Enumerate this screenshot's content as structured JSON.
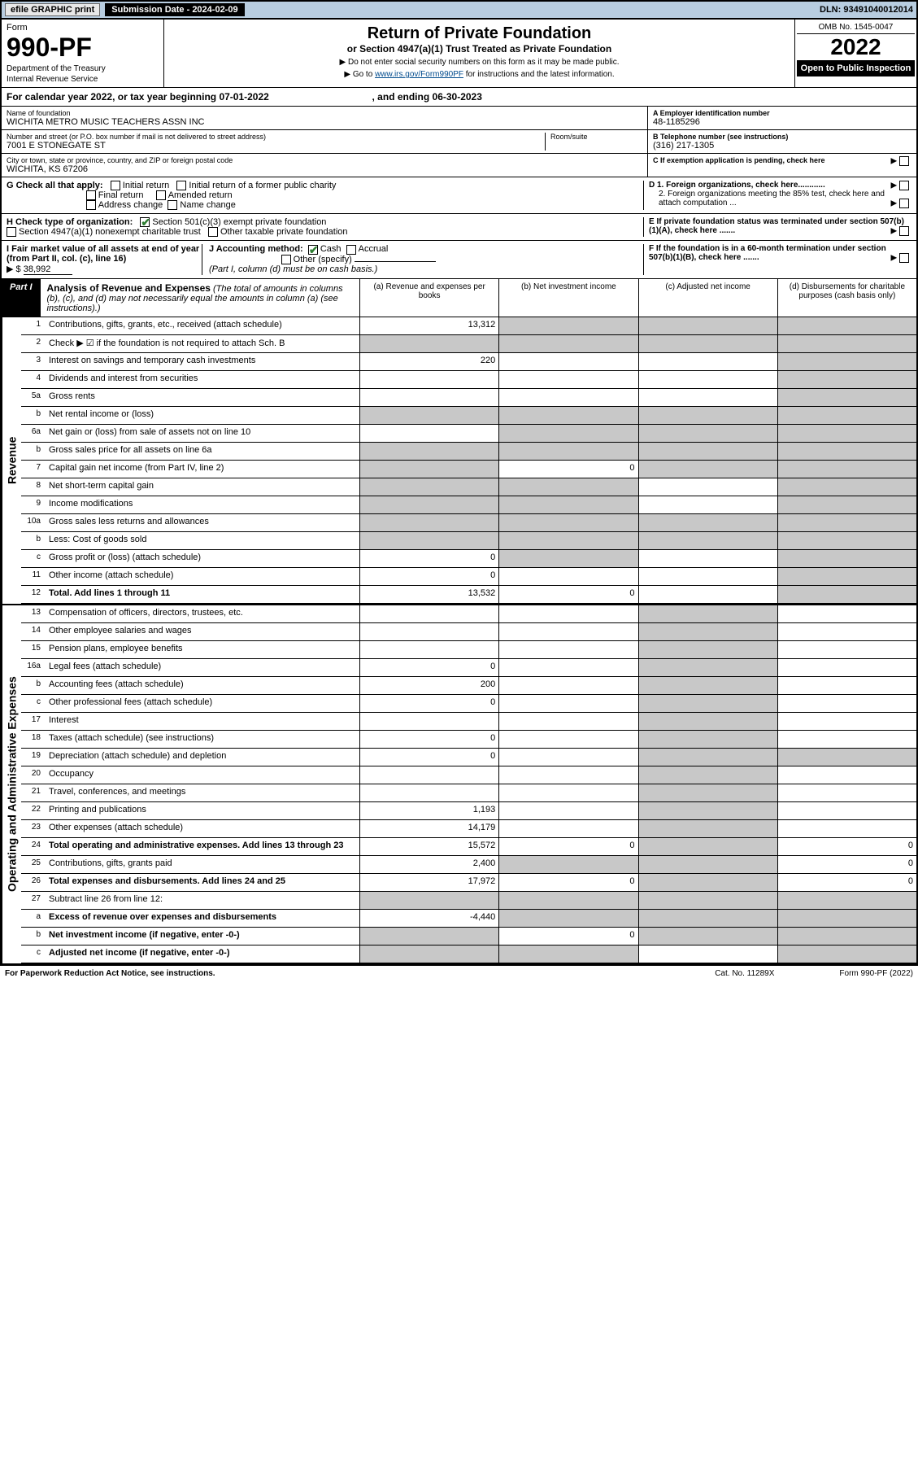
{
  "topbar": {
    "efile": "efile GRAPHIC print",
    "subdate_label": "Submission Date - 2024-02-09",
    "dln": "DLN: 93491040012014"
  },
  "header": {
    "form_label": "Form",
    "form_no": "990-PF",
    "dept": "Department of the Treasury",
    "irs": "Internal Revenue Service",
    "title": "Return of Private Foundation",
    "subtitle": "or Section 4947(a)(1) Trust Treated as Private Foundation",
    "note1": "▶ Do not enter social security numbers on this form as it may be made public.",
    "note2_a": "▶ Go to ",
    "note2_link": "www.irs.gov/Form990PF",
    "note2_b": " for instructions and the latest information.",
    "omb": "OMB No. 1545-0047",
    "year": "2022",
    "open": "Open to Public Inspection"
  },
  "calyear": {
    "text_a": "For calendar year 2022, or tax year beginning 07-01-2022",
    "text_b": ", and ending 06-30-2023"
  },
  "info": {
    "name_label": "Name of foundation",
    "name": "WICHITA METRO MUSIC TEACHERS ASSN INC",
    "addr_label": "Number and street (or P.O. box number if mail is not delivered to street address)",
    "addr": "7001 E STONEGATE ST",
    "room_label": "Room/suite",
    "city_label": "City or town, state or province, country, and ZIP or foreign postal code",
    "city": "WICHITA, KS  67206",
    "ein_label": "A Employer identification number",
    "ein": "48-1185296",
    "tel_label": "B Telephone number (see instructions)",
    "tel": "(316) 217-1305",
    "c_label": "C If exemption application is pending, check here"
  },
  "g": {
    "label": "G Check all that apply:",
    "initial": "Initial return",
    "initial_former": "Initial return of a former public charity",
    "final": "Final return",
    "amended": "Amended return",
    "addr_change": "Address change",
    "name_change": "Name change"
  },
  "h": {
    "label": "H Check type of organization:",
    "sec501": "Section 501(c)(3) exempt private foundation",
    "sec4947": "Section 4947(a)(1) nonexempt charitable trust",
    "other_tax": "Other taxable private foundation"
  },
  "i": {
    "label": "I Fair market value of all assets at end of year (from Part II, col. (c), line 16)",
    "arrow": "▶ $",
    "value": "38,992"
  },
  "j": {
    "label": "J Accounting method:",
    "cash": "Cash",
    "accrual": "Accrual",
    "other": "Other (specify)",
    "note": "(Part I, column (d) must be on cash basis.)"
  },
  "d": {
    "d1": "D 1. Foreign organizations, check here............",
    "d2": "2. Foreign organizations meeting the 85% test, check here and attach computation ..."
  },
  "e": {
    "text": "E  If private foundation status was terminated under section 507(b)(1)(A), check here ......."
  },
  "f": {
    "text": "F  If the foundation is in a 60-month termination under section 507(b)(1)(B), check here ......."
  },
  "part1": {
    "tag": "Part I",
    "title": "Analysis of Revenue and Expenses",
    "title_note": " (The total of amounts in columns (b), (c), and (d) may not necessarily equal the amounts in column (a) (see instructions).)",
    "col_a": "(a)  Revenue and expenses per books",
    "col_b": "(b)  Net investment income",
    "col_c": "(c)  Adjusted net income",
    "col_d": "(d)  Disbursements for charitable purposes (cash basis only)"
  },
  "rev_label": "Revenue",
  "exp_label": "Operating and Administrative Expenses",
  "rows_rev": [
    {
      "ln": "1",
      "desc": "Contributions, gifts, grants, etc., received (attach schedule)",
      "a": "13,312",
      "b_grey": true,
      "c_grey": true,
      "d_grey": true
    },
    {
      "ln": "2",
      "desc": "Check ▶ ☑ if the foundation is not required to attach Sch. B",
      "a_grey": true,
      "b_grey": true,
      "c_grey": true,
      "d_grey": true
    },
    {
      "ln": "3",
      "desc": "Interest on savings and temporary cash investments",
      "a": "220",
      "d_grey": true
    },
    {
      "ln": "4",
      "desc": "Dividends and interest from securities",
      "d_grey": true
    },
    {
      "ln": "5a",
      "desc": "Gross rents",
      "d_grey": true
    },
    {
      "ln": "b",
      "desc": "Net rental income or (loss)",
      "a_grey": true,
      "b_grey": true,
      "c_grey": true,
      "d_grey": true
    },
    {
      "ln": "6a",
      "desc": "Net gain or (loss) from sale of assets not on line 10",
      "b_grey": true,
      "c_grey": true,
      "d_grey": true
    },
    {
      "ln": "b",
      "desc": "Gross sales price for all assets on line 6a",
      "a_grey": true,
      "b_grey": true,
      "c_grey": true,
      "d_grey": true
    },
    {
      "ln": "7",
      "desc": "Capital gain net income (from Part IV, line 2)",
      "a_grey": true,
      "b": "0",
      "c_grey": true,
      "d_grey": true
    },
    {
      "ln": "8",
      "desc": "Net short-term capital gain",
      "a_grey": true,
      "b_grey": true,
      "d_grey": true
    },
    {
      "ln": "9",
      "desc": "Income modifications",
      "a_grey": true,
      "b_grey": true,
      "d_grey": true
    },
    {
      "ln": "10a",
      "desc": "Gross sales less returns and allowances",
      "a_grey": true,
      "b_grey": true,
      "c_grey": true,
      "d_grey": true
    },
    {
      "ln": "b",
      "desc": "Less: Cost of goods sold",
      "a_grey": true,
      "b_grey": true,
      "c_grey": true,
      "d_grey": true
    },
    {
      "ln": "c",
      "desc": "Gross profit or (loss) (attach schedule)",
      "a": "0",
      "b_grey": true,
      "d_grey": true
    },
    {
      "ln": "11",
      "desc": "Other income (attach schedule)",
      "a": "0",
      "d_grey": true
    },
    {
      "ln": "12",
      "desc": "Total. Add lines 1 through 11",
      "bold": true,
      "a": "13,532",
      "b": "0",
      "d_grey": true
    }
  ],
  "rows_exp": [
    {
      "ln": "13",
      "desc": "Compensation of officers, directors, trustees, etc.",
      "c_grey": true
    },
    {
      "ln": "14",
      "desc": "Other employee salaries and wages",
      "c_grey": true
    },
    {
      "ln": "15",
      "desc": "Pension plans, employee benefits",
      "c_grey": true
    },
    {
      "ln": "16a",
      "desc": "Legal fees (attach schedule)",
      "a": "0",
      "c_grey": true
    },
    {
      "ln": "b",
      "desc": "Accounting fees (attach schedule)",
      "a": "200",
      "c_grey": true
    },
    {
      "ln": "c",
      "desc": "Other professional fees (attach schedule)",
      "a": "0",
      "c_grey": true
    },
    {
      "ln": "17",
      "desc": "Interest",
      "c_grey": true
    },
    {
      "ln": "18",
      "desc": "Taxes (attach schedule) (see instructions)",
      "a": "0",
      "c_grey": true
    },
    {
      "ln": "19",
      "desc": "Depreciation (attach schedule) and depletion",
      "a": "0",
      "c_grey": true,
      "d_grey": true
    },
    {
      "ln": "20",
      "desc": "Occupancy",
      "c_grey": true
    },
    {
      "ln": "21",
      "desc": "Travel, conferences, and meetings",
      "c_grey": true
    },
    {
      "ln": "22",
      "desc": "Printing and publications",
      "a": "1,193",
      "c_grey": true
    },
    {
      "ln": "23",
      "desc": "Other expenses (attach schedule)",
      "a": "14,179",
      "c_grey": true
    },
    {
      "ln": "24",
      "desc": "Total operating and administrative expenses. Add lines 13 through 23",
      "bold": true,
      "a": "15,572",
      "b": "0",
      "c_grey": true,
      "d": "0"
    },
    {
      "ln": "25",
      "desc": "Contributions, gifts, grants paid",
      "a": "2,400",
      "b_grey": true,
      "c_grey": true,
      "d": "0"
    },
    {
      "ln": "26",
      "desc": "Total expenses and disbursements. Add lines 24 and 25",
      "bold": true,
      "a": "17,972",
      "b": "0",
      "c_grey": true,
      "d": "0"
    },
    {
      "ln": "27",
      "desc": "Subtract line 26 from line 12:",
      "a_grey": true,
      "b_grey": true,
      "c_grey": true,
      "d_grey": true
    },
    {
      "ln": "a",
      "desc": "Excess of revenue over expenses and disbursements",
      "bold": true,
      "a": "-4,440",
      "b_grey": true,
      "c_grey": true,
      "d_grey": true
    },
    {
      "ln": "b",
      "desc": "Net investment income (if negative, enter -0-)",
      "bold": true,
      "a_grey": true,
      "b": "0",
      "c_grey": true,
      "d_grey": true
    },
    {
      "ln": "c",
      "desc": "Adjusted net income (if negative, enter -0-)",
      "bold": true,
      "a_grey": true,
      "b_grey": true,
      "d_grey": true
    }
  ],
  "footer": {
    "left": "For Paperwork Reduction Act Notice, see instructions.",
    "mid": "Cat. No. 11289X",
    "right": "Form 990-PF (2022)"
  },
  "colors": {
    "topbar_bg": "#b8cde0",
    "grey_cell": "#c8c8c8",
    "link": "#004b8d",
    "check": "#2e7d32"
  }
}
